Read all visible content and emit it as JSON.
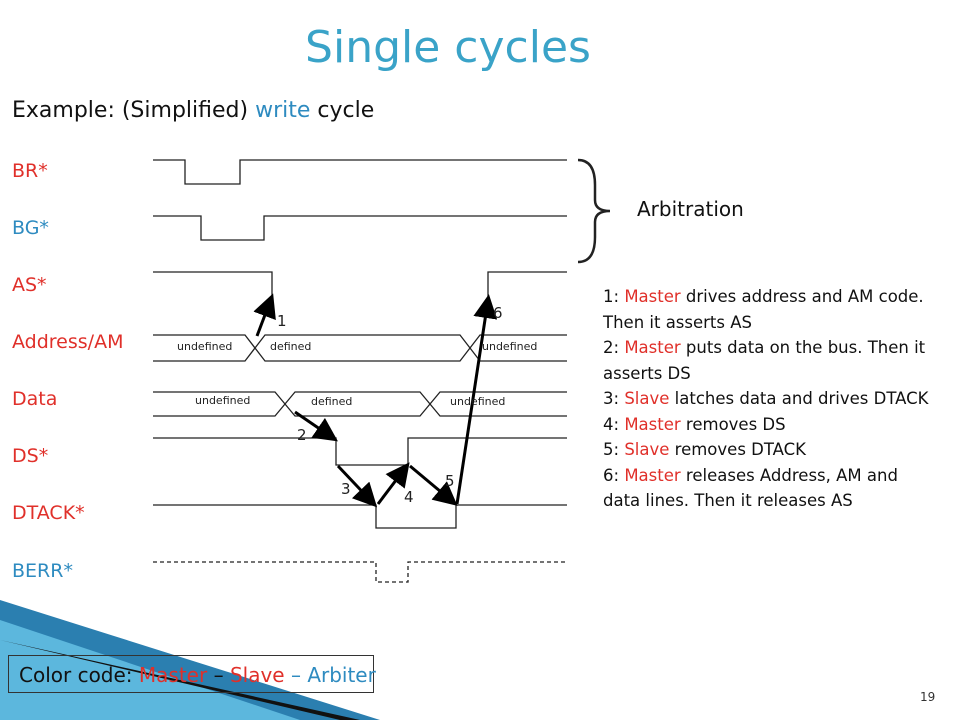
{
  "title": "Single cycles",
  "subtitle": {
    "parts": [
      "Example: (Simplified) ",
      "write",
      " cycle"
    ]
  },
  "signals": [
    "BR*",
    "BG*",
    "AS*",
    "Address/AM",
    "Data",
    "DS*",
    "DTACK*",
    "BERR*"
  ],
  "address_labels": [
    "undefined",
    "defined",
    "undefined"
  ],
  "data_labels": [
    "undefined",
    "defined",
    "undefined"
  ],
  "steps": [
    "1",
    "2",
    "3",
    "4",
    "5",
    "6"
  ],
  "arbitration": "Arbitration",
  "notes": [
    {
      "num": "1:",
      "actor": "Master",
      "text": "drives address and AM code. Then it asserts AS"
    },
    {
      "num": "2:",
      "actor": "Master",
      "text": "puts data on the bus. Then it asserts DS"
    },
    {
      "num": "3:",
      "actor": "Slave",
      "text": "latches data and drives DTACK"
    },
    {
      "num": "4:",
      "actor": "Master",
      "text": "removes DS"
    },
    {
      "num": "5:",
      "actor": "Slave",
      "text": "removes DTACK"
    },
    {
      "num": "6:",
      "actor": "Master",
      "text": "releases Address, AM and data lines. Then it releases AS"
    }
  ],
  "color_code": {
    "parts": [
      "Color code: ",
      "Master",
      " – ",
      "Slave",
      " – ",
      "Arbiter"
    ]
  },
  "page_number": "19"
}
